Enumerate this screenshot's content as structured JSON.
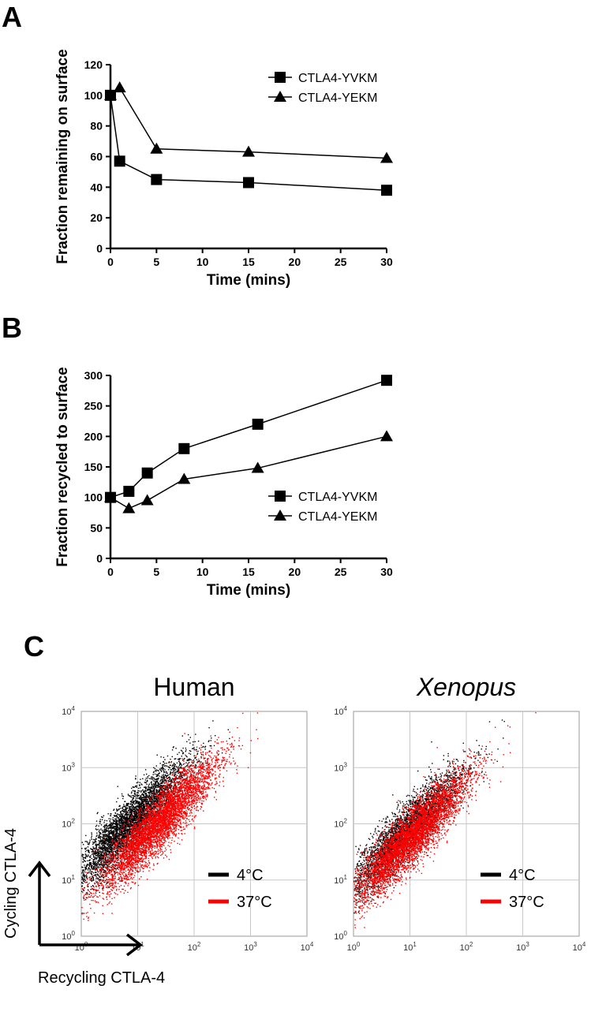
{
  "panels": {
    "A": {
      "letter": "A",
      "chart_data": {
        "type": "line",
        "xlabel": "Time (mins)",
        "ylabel": "Fraction remaining on surface",
        "xlim": [
          0,
          30
        ],
        "ylim": [
          0,
          120
        ],
        "xticks": [
          "0",
          "5",
          "10",
          "15",
          "20",
          "25",
          "30"
        ],
        "yticks": [
          "0",
          "20",
          "40",
          "60",
          "80",
          "100",
          "120"
        ],
        "legend_position": "top-right",
        "series": [
          {
            "name": "CTLA4-YVKM",
            "marker": "square",
            "x": [
              0,
              1,
              5,
              15,
              30
            ],
            "y": [
              100,
              57,
              45,
              43,
              38
            ]
          },
          {
            "name": "CTLA4-YEKM",
            "marker": "triangle",
            "x": [
              0,
              1,
              5,
              15,
              30
            ],
            "y": [
              100,
              105,
              65,
              63,
              59
            ]
          }
        ]
      }
    },
    "B": {
      "letter": "B",
      "chart_data": {
        "type": "line",
        "xlabel": "Time (mins)",
        "ylabel": "Fraction recycled to surface",
        "xlim": [
          0,
          30
        ],
        "ylim": [
          0,
          300
        ],
        "xticks": [
          "0",
          "5",
          "10",
          "15",
          "20",
          "25",
          "30"
        ],
        "yticks": [
          "0",
          "50",
          "100",
          "150",
          "200",
          "250",
          "300"
        ],
        "legend_position": "bottom-right",
        "series": [
          {
            "name": "CTLA4-YVKM",
            "marker": "square",
            "x": [
              0,
              2,
              4,
              8,
              16,
              30
            ],
            "y": [
              100,
              110,
              140,
              180,
              220,
              292
            ]
          },
          {
            "name": "CTLA4-YEKM",
            "marker": "triangle",
            "x": [
              0,
              2,
              4,
              8,
              16,
              30
            ],
            "y": [
              100,
              82,
              95,
              130,
              148,
              200
            ]
          }
        ]
      }
    },
    "C": {
      "letter": "C",
      "xlabel": "Recycling CTLA-4",
      "ylabel": "Cycling CTLA-4",
      "colors": {
        "cold": "#000000",
        "warm": "#ff0000",
        "grid": "#c8c8c8"
      },
      "chart_data": [
        {
          "type": "scatter",
          "title": "Human",
          "scale": "log",
          "xlim": [
            1,
            10000
          ],
          "ylim": [
            1,
            10000
          ],
          "legend_position": "bottom-right",
          "legend": [
            "4°C",
            "37°C"
          ],
          "populations": [
            {
              "name": "4°C",
              "color": "#000000",
              "log_x_center": 0.85,
              "log_y_center": 2.0,
              "n": 4500
            },
            {
              "name": "37°C",
              "color": "#ff0000",
              "log_x_center": 1.35,
              "log_y_center": 2.0,
              "n": 5000
            }
          ]
        },
        {
          "type": "scatter",
          "title": "Xenopus",
          "scale": "log",
          "xlim": [
            1,
            10000
          ],
          "ylim": [
            1,
            10000
          ],
          "legend_position": "bottom-right",
          "legend": [
            "4°C",
            "37°C"
          ],
          "populations": [
            {
              "name": "4°C",
              "color": "#000000",
              "log_x_center": 0.9,
              "log_y_center": 1.85,
              "n": 3500
            },
            {
              "name": "37°C",
              "color": "#ff0000",
              "log_x_center": 1.0,
              "log_y_center": 1.75,
              "n": 5000
            }
          ]
        }
      ]
    }
  }
}
